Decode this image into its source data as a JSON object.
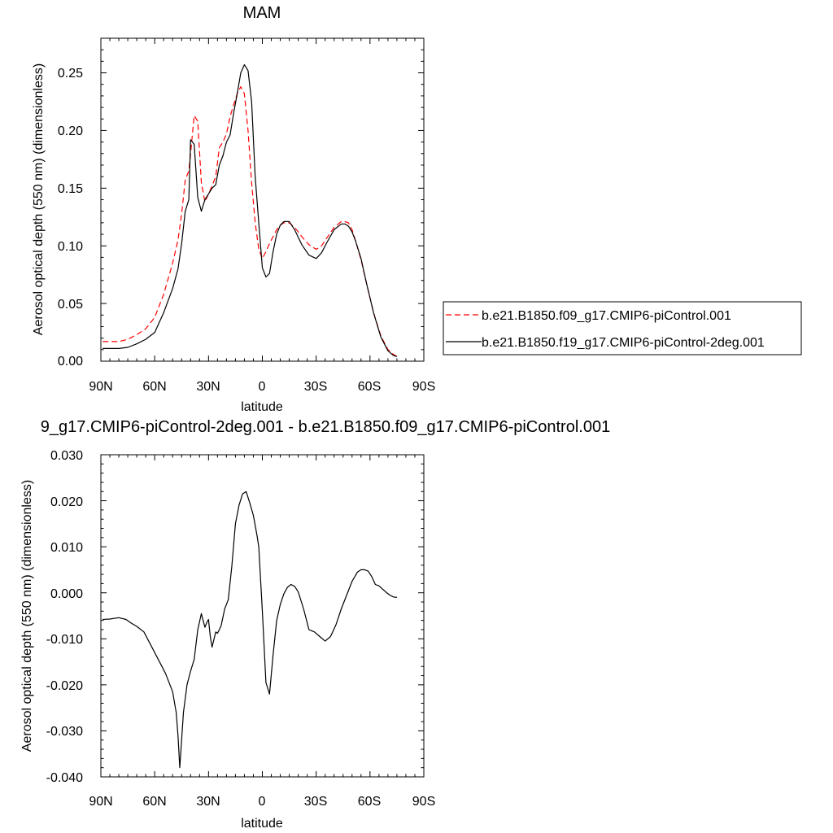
{
  "chart_data": [
    {
      "type": "line",
      "title": "MAM",
      "xlabel": "latitude",
      "ylabel": "Aerosol optical depth (550 nm) (dimensionless)",
      "xlim": [
        -90,
        90
      ],
      "ylim": [
        0,
        0.28
      ],
      "x_ticks": [
        -90,
        -60,
        -30,
        0,
        30,
        60,
        90
      ],
      "x_tick_labels": [
        "90N",
        "60N",
        "30N",
        "0",
        "30S",
        "60S",
        "90S"
      ],
      "y_ticks": [
        0,
        0.05,
        0.1,
        0.15,
        0.2,
        0.25
      ],
      "y_tick_labels": [
        "0.00",
        "0.05",
        "0.10",
        "0.15",
        "0.20",
        "0.25"
      ],
      "grid": false,
      "legend_position": "right",
      "series": [
        {
          "name": "b.e21.B1850.f09_g17.CMIP6-piControl.001",
          "color": "#ff0000",
          "style": "dashed",
          "x": [
            -89,
            -80,
            -75,
            -70,
            -65,
            -60,
            -55,
            -50,
            -47,
            -45,
            -43,
            -41,
            -40,
            -38,
            -36,
            -34,
            -32,
            -30,
            -28,
            -26,
            -24,
            -22,
            -20,
            -18,
            -16,
            -14,
            -12,
            -10,
            -8,
            -6,
            -4,
            -2,
            0,
            2,
            4,
            6,
            8,
            10,
            12,
            15,
            18,
            22,
            26,
            30,
            33,
            36,
            40,
            44,
            46,
            48,
            50,
            52,
            55,
            58,
            62,
            66,
            70,
            73,
            75
          ],
          "y": [
            0.017,
            0.017,
            0.019,
            0.023,
            0.028,
            0.038,
            0.058,
            0.085,
            0.105,
            0.128,
            0.157,
            0.165,
            0.18,
            0.213,
            0.208,
            0.155,
            0.138,
            0.145,
            0.152,
            0.16,
            0.185,
            0.19,
            0.197,
            0.212,
            0.222,
            0.232,
            0.238,
            0.232,
            0.2,
            0.155,
            0.12,
            0.097,
            0.089,
            0.095,
            0.102,
            0.108,
            0.114,
            0.118,
            0.12,
            0.12,
            0.116,
            0.108,
            0.101,
            0.097,
            0.1,
            0.107,
            0.116,
            0.121,
            0.121,
            0.12,
            0.114,
            0.104,
            0.088,
            0.068,
            0.042,
            0.022,
            0.01,
            0.006,
            0.004
          ]
        },
        {
          "name": "b.e21.B1850.f19_g17.CMIP6-piControl-2deg.001",
          "color": "#000000",
          "style": "solid",
          "x": [
            -89,
            -80,
            -75,
            -70,
            -65,
            -60,
            -55,
            -50,
            -47,
            -45,
            -43,
            -41,
            -40,
            -38,
            -36,
            -34,
            -32,
            -30,
            -28,
            -26,
            -24,
            -22,
            -20,
            -18,
            -16,
            -14,
            -12,
            -10,
            -8,
            -6,
            -4,
            -2,
            0,
            2,
            4,
            6,
            8,
            10,
            12,
            15,
            18,
            22,
            26,
            30,
            33,
            36,
            40,
            44,
            46,
            48,
            50,
            52,
            55,
            58,
            62,
            66,
            70,
            73,
            75
          ],
          "y": [
            0.011,
            0.011,
            0.012,
            0.015,
            0.019,
            0.025,
            0.042,
            0.063,
            0.08,
            0.102,
            0.13,
            0.14,
            0.192,
            0.188,
            0.142,
            0.13,
            0.14,
            0.145,
            0.15,
            0.153,
            0.17,
            0.178,
            0.19,
            0.196,
            0.215,
            0.232,
            0.25,
            0.257,
            0.252,
            0.225,
            0.16,
            0.12,
            0.081,
            0.073,
            0.076,
            0.095,
            0.11,
            0.118,
            0.121,
            0.121,
            0.114,
            0.101,
            0.092,
            0.089,
            0.094,
            0.103,
            0.114,
            0.119,
            0.119,
            0.117,
            0.112,
            0.104,
            0.089,
            0.068,
            0.042,
            0.021,
            0.009,
            0.005,
            0.004
          ]
        }
      ]
    },
    {
      "type": "line",
      "title": "9_g17.CMIP6-piControl-2deg.001 - b.e21.B1850.f09_g17.CMIP6-piControl.001",
      "xlabel": "latitude",
      "ylabel": "Aerosol optical depth (550 nm) (dimensionless)",
      "xlim": [
        -90,
        90
      ],
      "ylim": [
        -0.04,
        0.03
      ],
      "x_ticks": [
        -90,
        -60,
        -30,
        0,
        30,
        60,
        90
      ],
      "x_tick_labels": [
        "90N",
        "60N",
        "30N",
        "0",
        "30S",
        "60S",
        "90S"
      ],
      "y_ticks": [
        -0.04,
        -0.03,
        -0.02,
        -0.01,
        0,
        0.01,
        0.02,
        0.03
      ],
      "y_tick_labels": [
        "-0.040",
        "-0.030",
        "-0.020",
        "-0.010",
        "0.000",
        "0.010",
        "0.020",
        "0.030"
      ],
      "grid": false,
      "series": [
        {
          "color": "#000000",
          "style": "solid",
          "x": [
            -89,
            -85,
            -80,
            -76,
            -73,
            -70,
            -66,
            -62,
            -58,
            -54,
            -50,
            -48,
            -47,
            -46,
            -44,
            -42,
            -40,
            -38,
            -36,
            -35,
            -34,
            -33,
            -32,
            -31,
            -30,
            -29,
            -28,
            -26,
            -25,
            -23,
            -21,
            -19,
            -17,
            -15,
            -13,
            -11,
            -9,
            -7,
            -5,
            -3,
            -2,
            0,
            2,
            4,
            6,
            8,
            10,
            12,
            14,
            16,
            18,
            20,
            23,
            26,
            29,
            32,
            35,
            38,
            41,
            44,
            47,
            50,
            53,
            55,
            57,
            59,
            61,
            63,
            65,
            67,
            69,
            71,
            73,
            75
          ],
          "y": [
            -0.0058,
            -0.0057,
            -0.0054,
            -0.0058,
            -0.0066,
            -0.0073,
            -0.0085,
            -0.0115,
            -0.0145,
            -0.0175,
            -0.0215,
            -0.026,
            -0.031,
            -0.038,
            -0.026,
            -0.02,
            -0.017,
            -0.0145,
            -0.008,
            -0.0063,
            -0.0045,
            -0.006,
            -0.0075,
            -0.0065,
            -0.0058,
            -0.0095,
            -0.0118,
            -0.0085,
            -0.0088,
            -0.0072,
            -0.0035,
            -0.0015,
            0.0058,
            0.015,
            0.019,
            0.0215,
            0.022,
            0.0195,
            0.0168,
            0.0125,
            0.01,
            -0.004,
            -0.0195,
            -0.022,
            -0.0135,
            -0.006,
            -0.0025,
            -0.0002,
            0.0012,
            0.0018,
            0.0014,
            0.0002,
            -0.0035,
            -0.008,
            -0.0085,
            -0.0095,
            -0.0105,
            -0.0095,
            -0.007,
            -0.0035,
            -0.0005,
            0.0025,
            0.0045,
            0.005,
            0.005,
            0.0047,
            0.0035,
            0.0018,
            0.0015,
            0.0008,
            0.0001,
            -0.0005,
            -0.0009,
            -0.001
          ]
        }
      ]
    }
  ]
}
